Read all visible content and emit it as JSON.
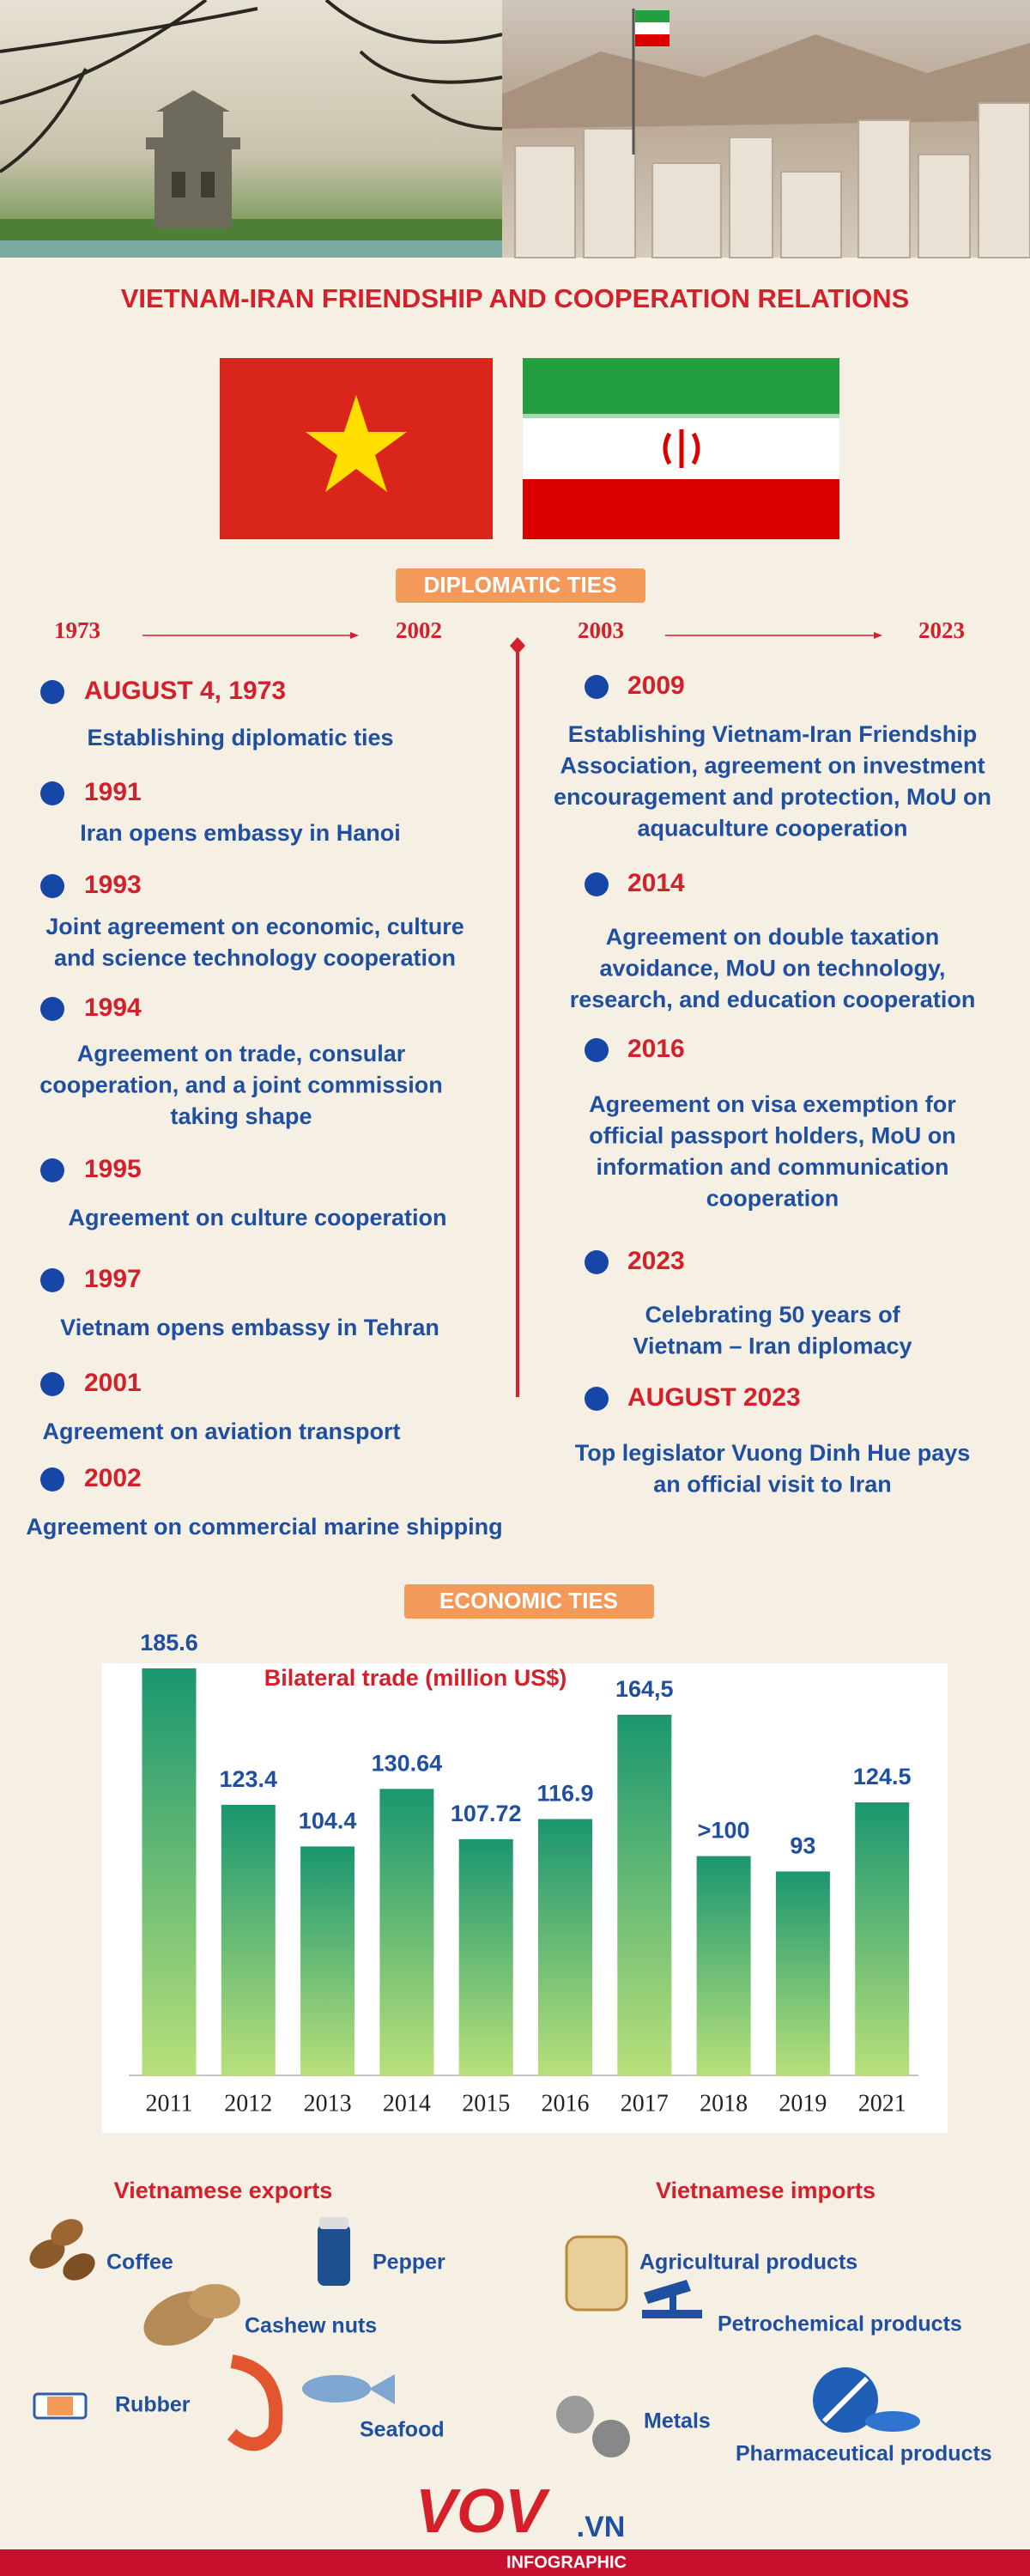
{
  "header": {
    "title": "VIETNAM-IRAN FRIENDSHIP AND COOPERATION RELATIONS"
  },
  "diplomatic": {
    "heading": "DIPLOMATIC TIES",
    "left_range": [
      "1973",
      "2002"
    ],
    "right_range": [
      "2003",
      "2023"
    ],
    "left_events": [
      {
        "date": "AUGUST 4, 1973",
        "lines": [
          "Establishing diplomatic ties"
        ]
      },
      {
        "date": "1991",
        "lines": [
          "Iran opens embassy in Hanoi"
        ]
      },
      {
        "date": "1993",
        "lines": [
          "Joint agreement on economic, culture",
          "and science technology cooperation"
        ]
      },
      {
        "date": "1994",
        "lines": [
          "Agreement on trade, consular",
          "cooperation, and a joint commission",
          "taking shape"
        ]
      },
      {
        "date": "1995",
        "lines": [
          "Agreement on culture cooperation"
        ]
      },
      {
        "date": "1997",
        "lines": [
          "Vietnam opens embassy in Tehran"
        ]
      },
      {
        "date": "2001",
        "lines": [
          "Agreement on aviation transport"
        ]
      },
      {
        "date": "2002",
        "lines": [
          "Agreement on commercial marine shipping"
        ]
      }
    ],
    "right_events": [
      {
        "date": "2009",
        "lines": [
          "Establishing Vietnam-Iran Friendship",
          "Association, agreement on investment",
          "encouragement and protection, MoU on",
          "aquaculture cooperation"
        ]
      },
      {
        "date": "2014",
        "lines": [
          "Agreement on double taxation",
          "avoidance, MoU on technology,",
          "research, and education cooperation"
        ]
      },
      {
        "date": "2016",
        "lines": [
          "Agreement on visa exemption for",
          "official passport holders, MoU on",
          "information and communication",
          "cooperation"
        ]
      },
      {
        "date": "2023",
        "lines": [
          "Celebrating 50 years of",
          "Vietnam – Iran diplomacy"
        ]
      },
      {
        "date": "AUGUST 2023",
        "lines": [
          "Top legislator Vuong Dinh Hue pays",
          "an official visit to Iran"
        ]
      }
    ]
  },
  "economic": {
    "heading": "ECONOMIC TIES",
    "chart": {
      "type": "bar",
      "title": "Bilateral trade (million US$)",
      "categories": [
        "2011",
        "2012",
        "2013",
        "2014",
        "2015",
        "2016",
        "2017",
        "2018",
        "2019",
        "2021"
      ],
      "values": [
        185.6,
        123.4,
        104.4,
        130.64,
        107.72,
        116.9,
        164.5,
        100,
        93,
        124.5
      ],
      "value_labels": [
        "185.6",
        "123.4",
        "104.4",
        "130.64",
        "107.72",
        "116.9",
        "164,5",
        ">100",
        "93",
        "124.5"
      ],
      "color": "#1a9670"
    }
  },
  "exports": {
    "heading": "Vietnamese exports",
    "items": [
      "Coffee",
      "Pepper",
      "Cashew nuts",
      "Rubber",
      "Seafood"
    ]
  },
  "imports": {
    "heading": "Vietnamese imports",
    "items": [
      "Agricultural products",
      "Petrochemical products",
      "Metals",
      "Pharmaceutical products"
    ]
  },
  "footer": {
    "logo": "VOV",
    "suffix": ".VN",
    "label": "INFOGRAPHIC"
  }
}
